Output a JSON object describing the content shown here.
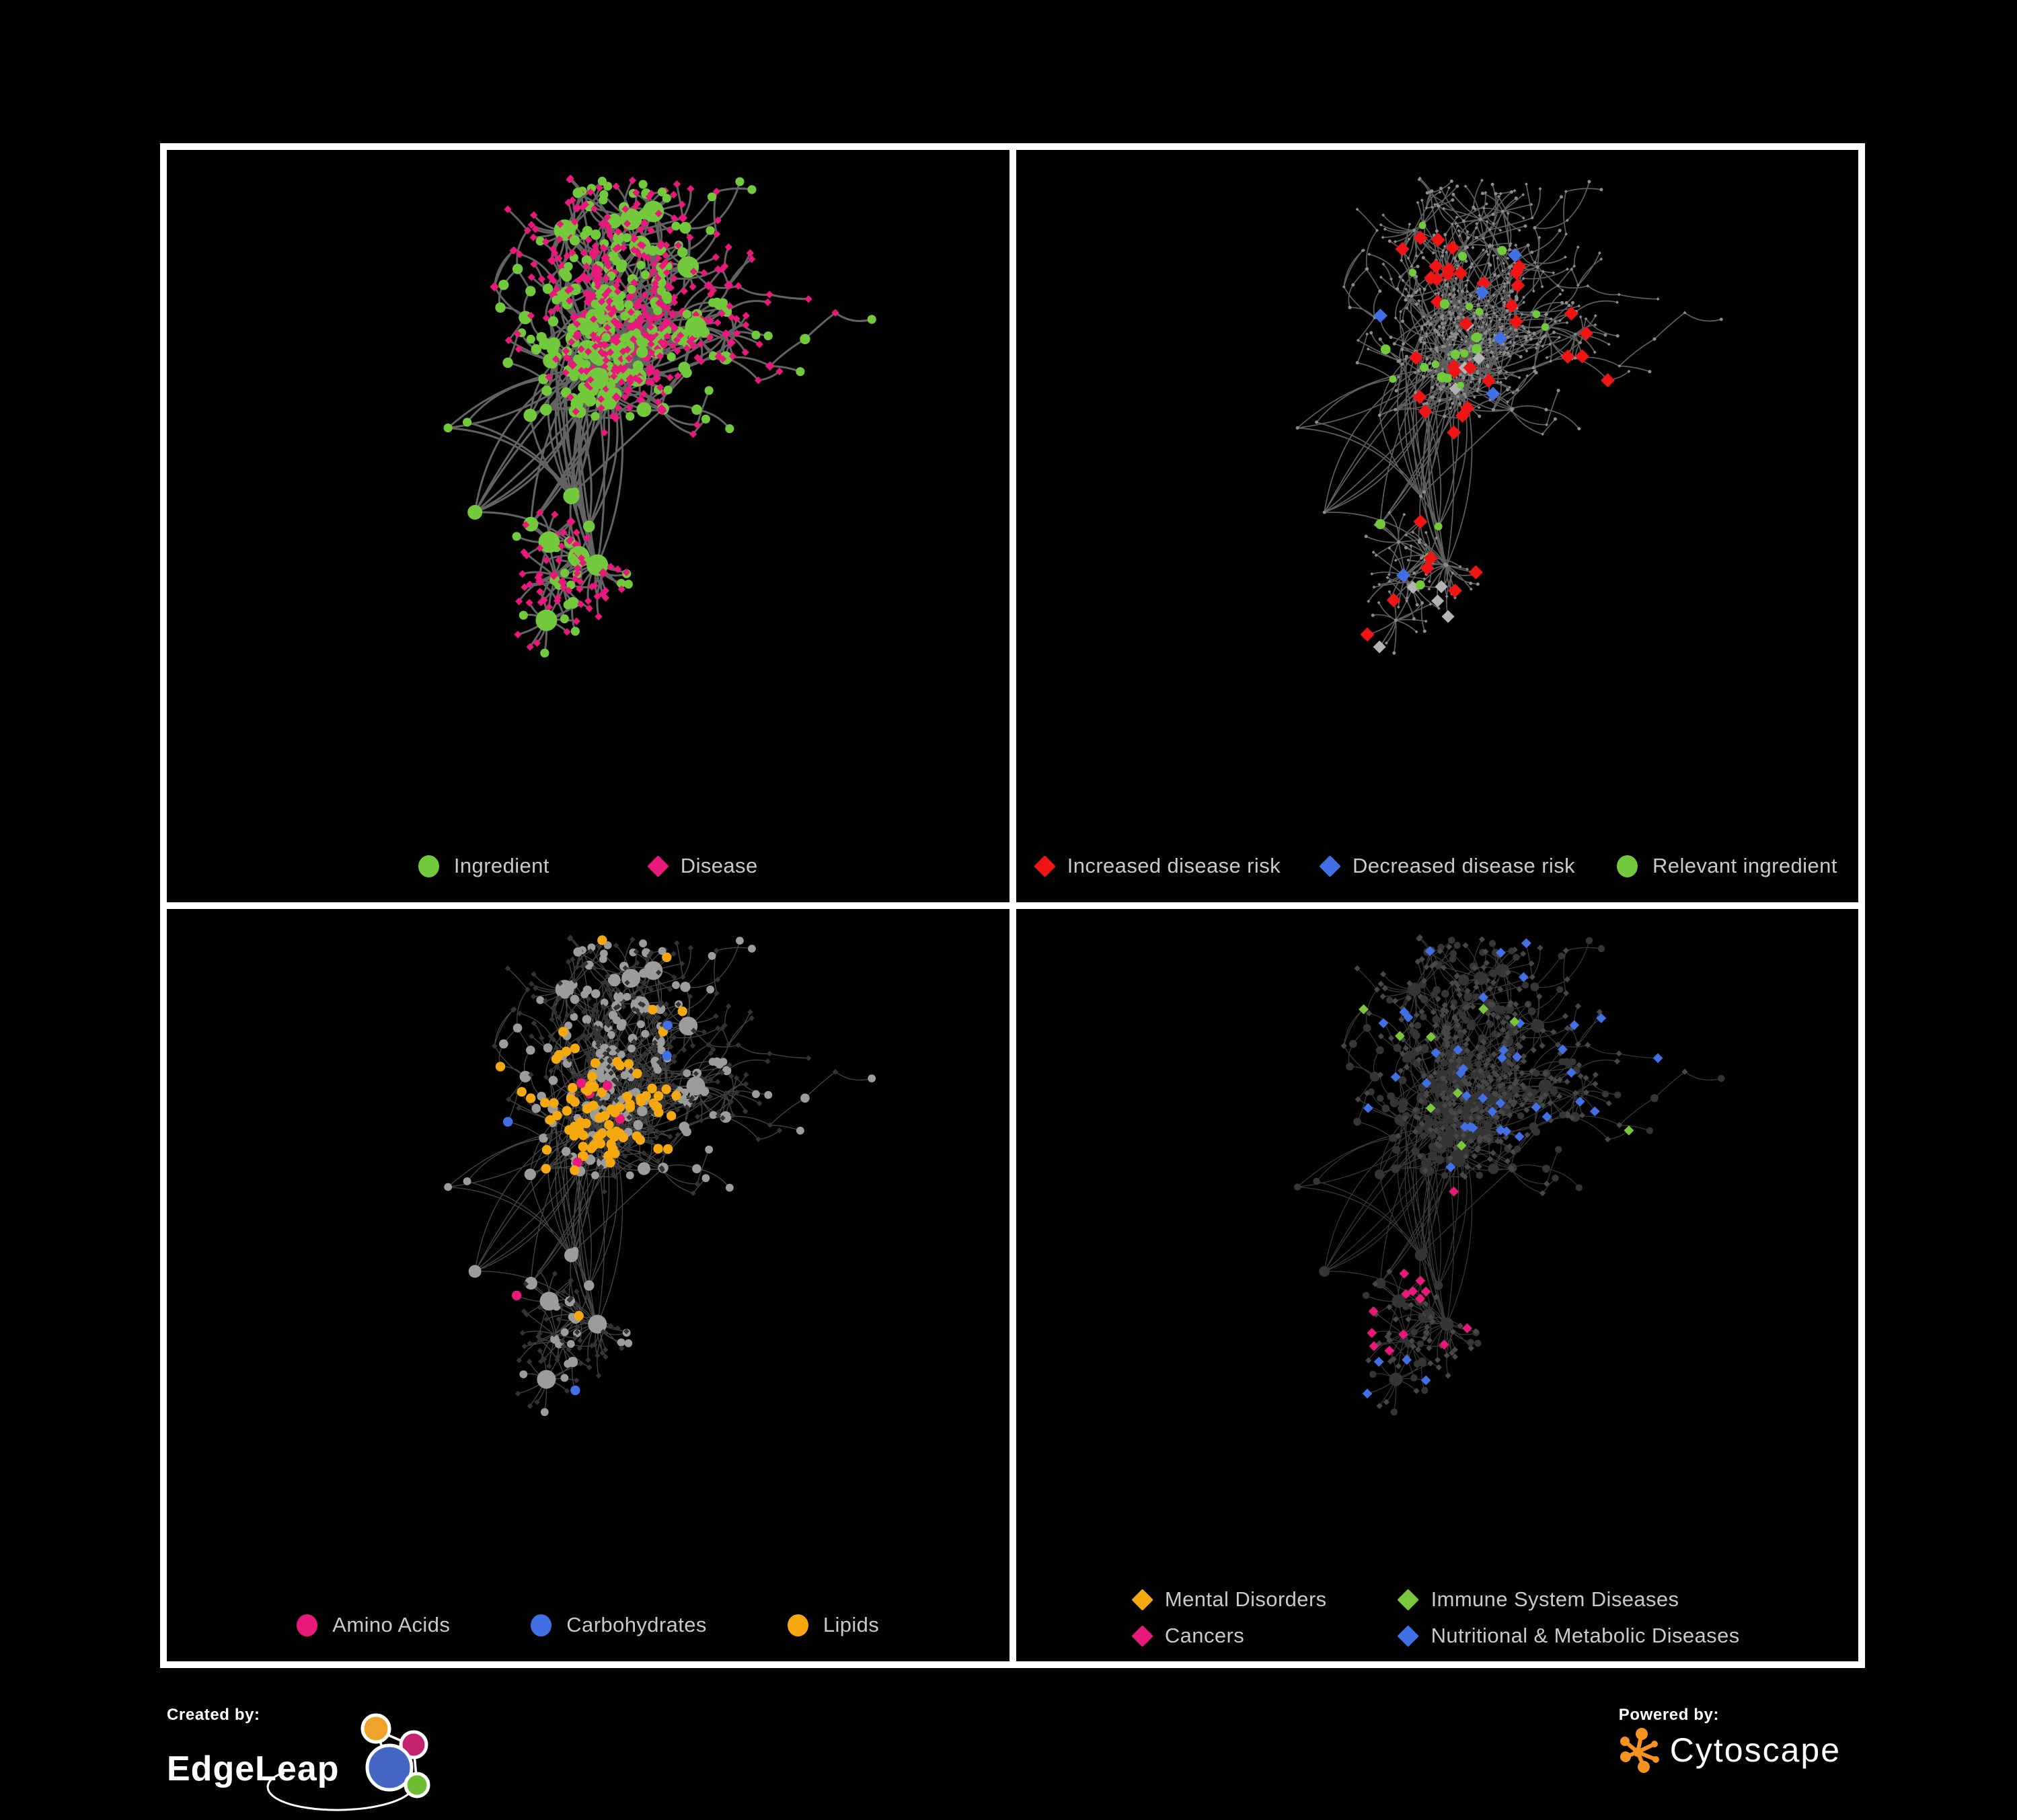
{
  "page": {
    "background": "#000000",
    "frame_color": "#ffffff",
    "legend_text_color": "#c9c9c9"
  },
  "network": {
    "seed": 1337,
    "node_total": 750
  },
  "panels": [
    {
      "name": "ingredient-disease-network",
      "legend": [
        {
          "label": "Ingredient",
          "shape": "circle",
          "color": "#72c93b"
        },
        {
          "label": "Disease",
          "shape": "diamond",
          "color": "#e9187b"
        }
      ],
      "style": {
        "edge_color": "#676767",
        "edge_width": 3.0,
        "edge_opacity": 0.95,
        "ingredient_color": "#72c93b",
        "disease_color": "#e9187b"
      }
    },
    {
      "name": "disease-risk-network",
      "legend": [
        {
          "label": "Increased disease risk",
          "shape": "diamond",
          "color": "#f01414"
        },
        {
          "label": "Decreased disease risk",
          "shape": "diamond",
          "color": "#4070e4"
        },
        {
          "label": "Relevant ingredient",
          "shape": "circle",
          "color": "#72c93b"
        }
      ],
      "style": {
        "edge_color": "#6e6e6e",
        "edge_width": 1.7,
        "edge_opacity": 0.85,
        "base_color": "#8c8c8c",
        "neutral_color": "#b3b3b3",
        "increased_color": "#f01414",
        "decreased_color": "#4070e4",
        "ingredient_color": "#72c93b"
      }
    },
    {
      "name": "nutrient-class-network",
      "legend": [
        {
          "label": "Amino Acids",
          "shape": "circle",
          "color": "#e9187b"
        },
        {
          "label": "Carbohydrates",
          "shape": "circle",
          "color": "#4070e4"
        },
        {
          "label": "Lipids",
          "shape": "circle",
          "color": "#f5a90f"
        }
      ],
      "style": {
        "edge_color": "#a6a6a6",
        "edge_width": 1.3,
        "edge_opacity": 0.42,
        "ingredient_color": "#9c9c9c",
        "disease_color": "#333333",
        "amino_color": "#e9187b",
        "carb_color": "#4070e4",
        "lipid_color": "#f5a90f"
      }
    },
    {
      "name": "disease-class-network",
      "legend": [
        {
          "label": "Mental Disorders",
          "shape": "diamond",
          "color": "#f5a90f"
        },
        {
          "label": "Immune System Diseases",
          "shape": "diamond",
          "color": "#7cc63d"
        },
        {
          "label": "Cancers",
          "shape": "diamond",
          "color": "#e9187b"
        },
        {
          "label": "Nutritional & Metabolic Diseases",
          "shape": "diamond",
          "color": "#4070e4"
        }
      ],
      "style": {
        "edge_color": "#8f8f8f",
        "edge_width": 1.2,
        "edge_opacity": 0.4,
        "ingredient_color": "#353535",
        "disease_color": "#474747",
        "mental_color": "#f5a90f",
        "immune_color": "#7cc63d",
        "cancer_color": "#e9187b",
        "nutritional_color": "#4070e4"
      }
    }
  ],
  "footer": {
    "created_by": {
      "label": "Created by:",
      "brand": "EdgeLeap",
      "logo_colors": {
        "blue": "#4467c4",
        "orange": "#f0a32a",
        "magenta": "#c4246e",
        "green": "#6cbe30"
      }
    },
    "powered_by": {
      "label": "Powered by:",
      "brand": "Cytoscape",
      "logo_color": "#f6921e"
    }
  }
}
